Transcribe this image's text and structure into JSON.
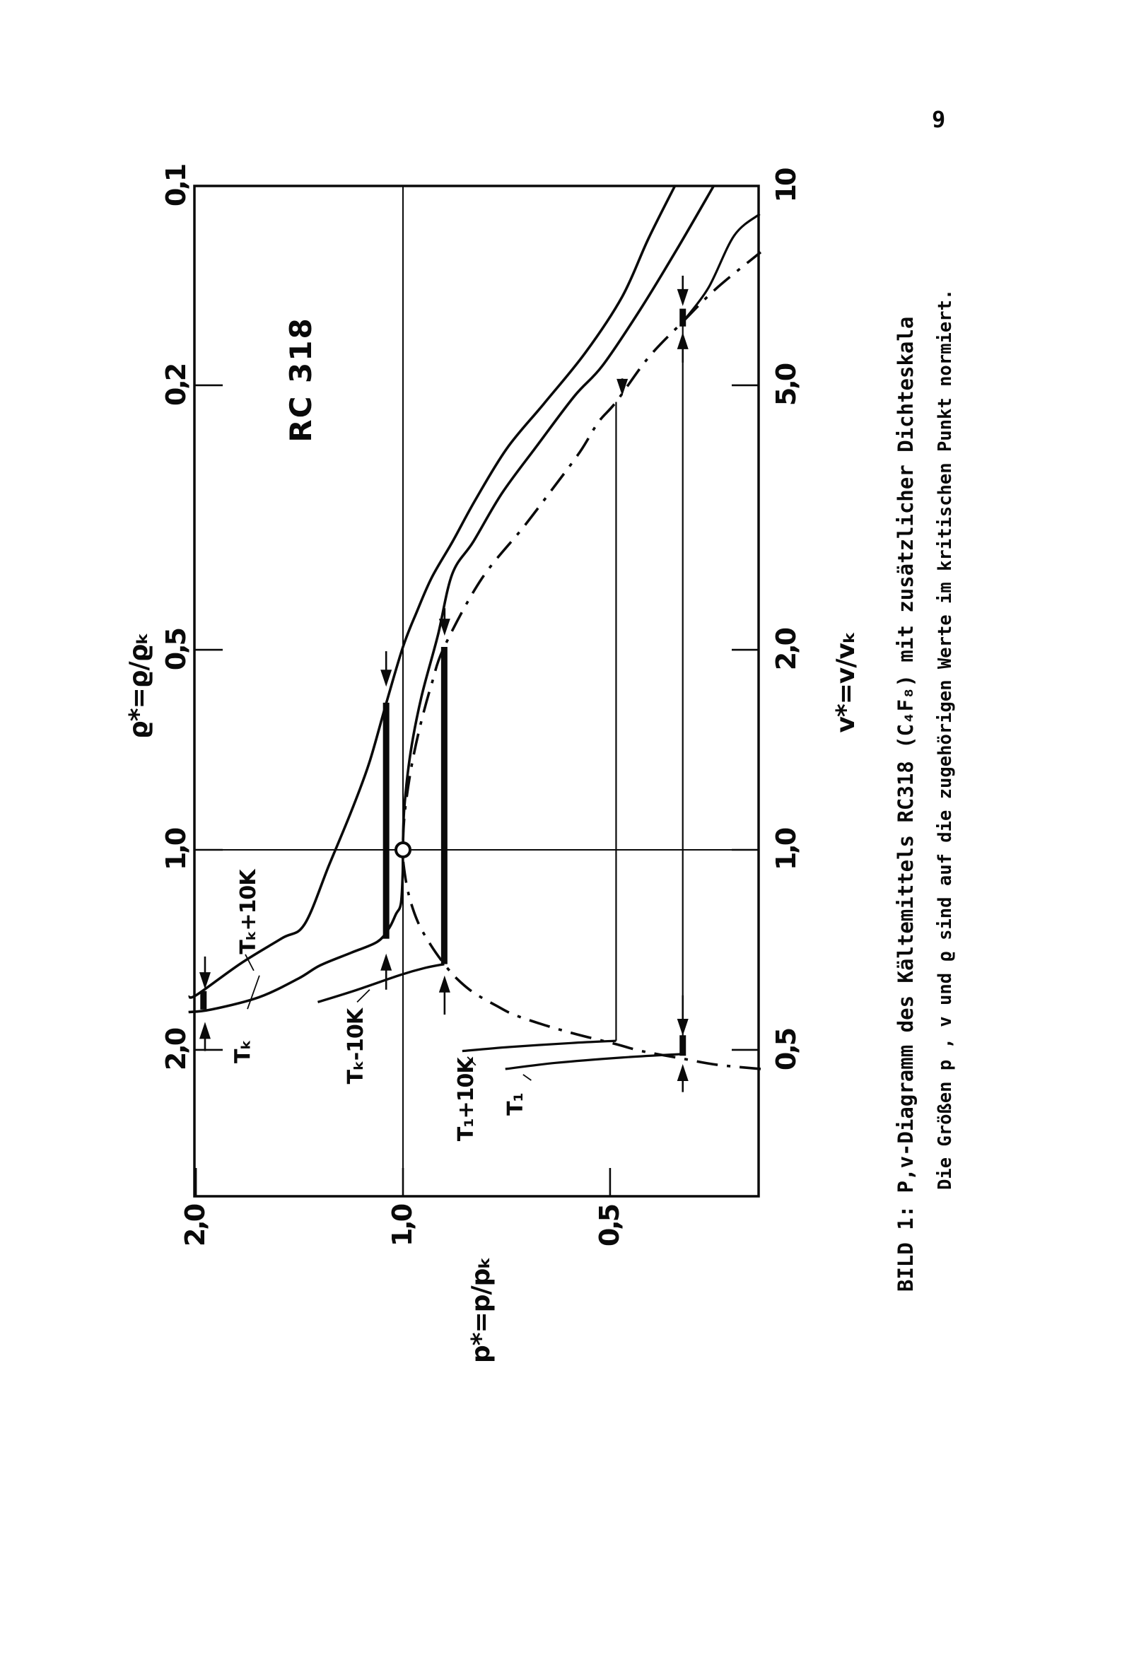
{
  "page": {
    "number": "9"
  },
  "figure": {
    "caption": {
      "line1": "BILD 1: P,v-Diagramm des Kältemittels  RC318 (C₄F₈)  mit zusätzlicher Dichteskala",
      "line2": "Die Größen p , v und ϱ  sind auf die zugehörigen Werte im kritischen Punkt normiert."
    },
    "chart_data": {
      "type": "line",
      "title": "RC 318",
      "substance": "RC318 (C₄F₈)",
      "log_log": true,
      "x_axis_bottom": {
        "label": "v*=v/vₖ",
        "scale": "log",
        "range": [
          0.295,
          10
        ],
        "ticks": [
          {
            "value": 10,
            "label": "10"
          },
          {
            "value": 5,
            "label": "5,0"
          },
          {
            "value": 2,
            "label": "2,0"
          },
          {
            "value": 1,
            "label": "1,0"
          },
          {
            "value": 0.5,
            "label": "0,5"
          }
        ]
      },
      "x_axis_top": {
        "label": "ϱ*=ϱ/ϱₖ",
        "scale": "log-inverse",
        "ticks": [
          {
            "value": 10,
            "label": "0,1"
          },
          {
            "value": 5,
            "label": "0,2"
          },
          {
            "value": 2,
            "label": "0,5"
          },
          {
            "value": 1,
            "label": "1,0"
          },
          {
            "value": 0.5,
            "label": "2,0"
          }
        ]
      },
      "y_axis": {
        "label": "p*=p/pₖ",
        "scale": "log",
        "range": [
          0.3,
          2.05
        ],
        "ticks": [
          {
            "value": 2,
            "label": "2,0"
          },
          {
            "value": 1,
            "label": "1,0"
          },
          {
            "value": 0.5,
            "label": "0,5"
          }
        ]
      },
      "reference_lines": {
        "p": 1.0,
        "v": 1.0
      },
      "critical_point": {
        "v": 1.0,
        "p": 1.0
      },
      "series": [
        {
          "name": "isotherm-Tk+10K",
          "style": "solid",
          "width": 3.6,
          "points": [
            [
              0.601,
              2.05
            ],
            [
              0.606,
              1.99
            ],
            [
              0.675,
              1.72
            ],
            [
              0.736,
              1.5
            ],
            [
              0.773,
              1.39
            ],
            [
              0.95,
              1.28
            ],
            [
              1.14,
              1.19
            ],
            [
              1.35,
              1.12
            ],
            [
              1.66,
              1.058
            ],
            [
              2.02,
              1.0
            ],
            [
              2.28,
              0.955
            ],
            [
              2.57,
              0.908
            ],
            [
              2.91,
              0.847
            ],
            [
              3.36,
              0.785
            ],
            [
              4.02,
              0.706
            ],
            [
              4.7,
              0.623
            ],
            [
              5.6,
              0.543
            ],
            [
              6.8,
              0.48
            ],
            [
              8.3,
              0.44
            ],
            [
              10.0,
              0.402
            ]
          ]
        },
        {
          "name": "isotherm-Tk",
          "style": "solid",
          "width": 3.6,
          "points": [
            [
              0.57,
              2.05
            ],
            [
              0.575,
              1.9
            ],
            [
              0.6,
              1.62
            ],
            [
              0.64,
              1.42
            ],
            [
              0.67,
              1.32
            ],
            [
              0.7,
              1.19
            ],
            [
              0.727,
              1.09
            ],
            [
              0.762,
              1.048
            ],
            [
              0.8,
              1.024
            ],
            [
              0.83,
              1.007
            ],
            [
              0.92,
              1.001
            ],
            [
              1.0,
              1.0
            ],
            [
              1.15,
              0.996
            ],
            [
              1.4,
              0.975
            ],
            [
              1.7,
              0.94
            ],
            [
              2.1,
              0.89
            ],
            [
              2.6,
              0.848
            ],
            [
              2.91,
              0.79
            ],
            [
              3.44,
              0.718
            ],
            [
              4.06,
              0.638
            ],
            [
              4.82,
              0.563
            ],
            [
              5.35,
              0.513
            ],
            [
              6.5,
              0.452
            ],
            [
              8.0,
              0.4
            ],
            [
              10.0,
              0.353
            ]
          ]
        },
        {
          "name": "isotherm-Tk-10K-liquid",
          "style": "solid",
          "width": 3.4,
          "points": [
            [
              0.59,
              1.33
            ],
            [
              0.615,
              1.17
            ],
            [
              0.648,
              1.01
            ],
            [
              0.664,
              0.93
            ],
            [
              0.673,
              0.871
            ]
          ]
        },
        {
          "name": "isotherm-Tk-10K-two-phase",
          "style": "solid",
          "width": 9,
          "points": [
            [
              0.673,
              0.871
            ],
            [
              2.02,
              0.871
            ]
          ]
        },
        {
          "name": "isotherm-T1+10K-liquid",
          "style": "solid",
          "width": 3.2,
          "points": [
            [
              0.498,
              0.82
            ],
            [
              0.505,
              0.7
            ],
            [
              0.512,
              0.57
            ],
            [
              0.516,
              0.49
            ]
          ]
        },
        {
          "name": "isotherm-T1+10K-two-phase",
          "style": "solid",
          "width": 2.2,
          "points": [
            [
              0.516,
              0.49
            ],
            [
              4.72,
              0.49
            ]
          ]
        },
        {
          "name": "isotherm-T1-liquid",
          "style": "solid",
          "width": 3.2,
          "points": [
            [
              0.468,
              0.71
            ],
            [
              0.478,
              0.6
            ],
            [
              0.487,
              0.48
            ],
            [
              0.493,
              0.392
            ]
          ]
        },
        {
          "name": "isotherm-T1-two-phase",
          "style": "solid",
          "width": 2.2,
          "points": [
            [
              0.493,
              0.392
            ],
            [
              6.23,
              0.392
            ]
          ]
        },
        {
          "name": "isotherm-T1-gas",
          "style": "solid",
          "width": 3.2,
          "points": [
            [
              6.23,
              0.392
            ],
            [
              7.0,
              0.36
            ],
            [
              8.4,
              0.33
            ],
            [
              9.05,
              0.303
            ]
          ]
        },
        {
          "name": "coexistence-curve",
          "style": "dashdot",
          "width": 3.6,
          "points": [
            [
              0.468,
              0.302
            ],
            [
              0.475,
              0.35
            ],
            [
              0.485,
              0.392
            ],
            [
              0.498,
              0.45
            ],
            [
              0.51,
              0.49
            ],
            [
              0.528,
              0.56
            ],
            [
              0.545,
              0.623
            ],
            [
              0.565,
              0.69
            ],
            [
              0.582,
              0.73
            ],
            [
              0.61,
              0.79
            ],
            [
              0.64,
              0.835
            ],
            [
              0.673,
              0.871
            ],
            [
              0.72,
              0.912
            ],
            [
              0.78,
              0.952
            ],
            [
              0.86,
              0.982
            ],
            [
              0.95,
              0.998
            ],
            [
              1.0,
              1.0
            ],
            [
              1.08,
              0.998
            ],
            [
              1.18,
              0.99
            ],
            [
              1.35,
              0.97
            ],
            [
              1.55,
              0.942
            ],
            [
              1.78,
              0.908
            ],
            [
              2.02,
              0.871
            ],
            [
              2.55,
              0.77
            ],
            [
              3.06,
              0.668
            ],
            [
              3.51,
              0.604
            ],
            [
              3.97,
              0.553
            ],
            [
              4.4,
              0.52
            ],
            [
              4.72,
              0.49
            ],
            [
              5.5,
              0.44
            ],
            [
              6.23,
              0.392
            ],
            [
              7.0,
              0.35
            ],
            [
              7.93,
              0.302
            ]
          ]
        }
      ],
      "highlight_bars": [
        {
          "name": "density-span-p1.95",
          "p": 1.95,
          "v1": 0.575,
          "v2": 0.613
        },
        {
          "name": "density-span-p1.06",
          "p": 1.058,
          "v1": 0.735,
          "v2": 1.665
        },
        {
          "name": "density-span-T1-gas",
          "p": 0.392,
          "v1": 6.13,
          "v2": 6.52
        },
        {
          "name": "density-span-T1-liquid",
          "p": 0.392,
          "v1": 0.49,
          "v2": 0.526
        }
      ],
      "arrows": [
        {
          "p": 1.94,
          "from": 0.691,
          "to": 0.617
        },
        {
          "p": 1.94,
          "from": 0.498,
          "to": 0.551
        },
        {
          "p": 1.058,
          "from": 1.99,
          "to": 1.76
        },
        {
          "p": 1.058,
          "from": 0.616,
          "to": 0.698
        },
        {
          "p": 0.87,
          "from": 2.31,
          "to": 2.1
        },
        {
          "p": 0.87,
          "from": 0.565,
          "to": 0.647
        },
        {
          "p": 0.392,
          "from": 7.31,
          "to": 6.58
        },
        {
          "p": 0.392,
          "from": 5.41,
          "to": 6.01
        },
        {
          "p": 0.392,
          "from": 0.604,
          "to": 0.525
        },
        {
          "p": 0.392,
          "from": 0.432,
          "to": 0.476
        },
        {
          "p": 0.48,
          "from": 5.12,
          "to": 4.82
        }
      ],
      "curve_labels": [
        {
          "text": "Tₖ+10K",
          "v": 0.806,
          "p": 1.683,
          "leader": [
            [
              0.696,
              1.695
            ],
            [
              0.658,
              1.648
            ]
          ]
        },
        {
          "text": "Tₖ",
          "v": 0.497,
          "p": 1.714,
          "leader": [
            [
              0.576,
              1.683
            ],
            [
              0.647,
              1.617
            ]
          ]
        },
        {
          "text": "Tₖ-10K",
          "v": 0.506,
          "p": 1.175,
          "leader": [
            [
              0.59,
              1.166
            ],
            [
              0.616,
              1.118
            ]
          ]
        },
        {
          "text": "T₁+10K",
          "v": 0.421,
          "p": 0.812,
          "leader": [
            [
              0.488,
              0.806
            ],
            [
              0.474,
              0.784
            ]
          ]
        },
        {
          "text": "T₁",
          "v": 0.414,
          "p": 0.688,
          "leader": [
            [
              0.459,
              0.669
            ],
            [
              0.45,
              0.651
            ]
          ]
        }
      ]
    }
  }
}
